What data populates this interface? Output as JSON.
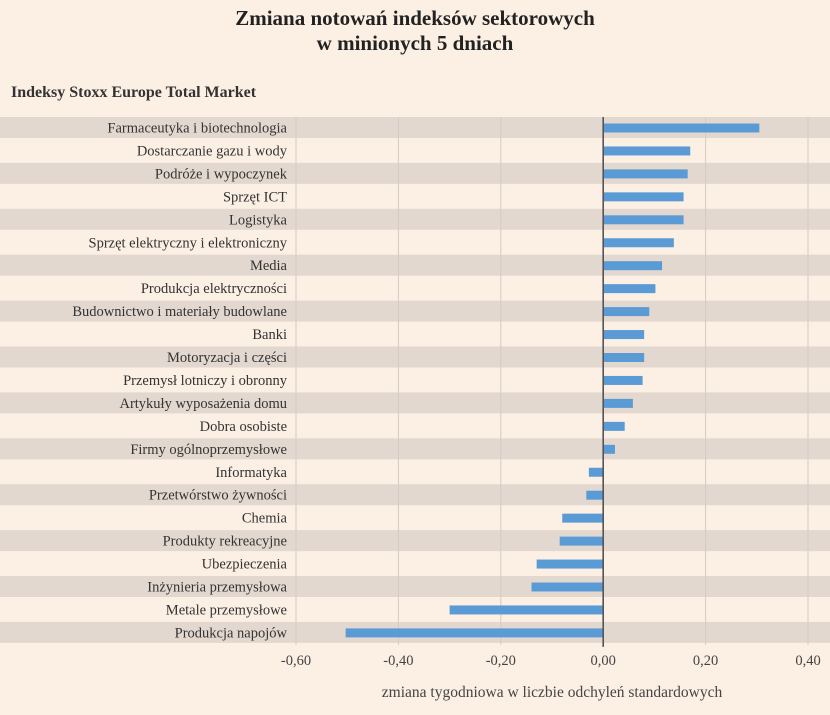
{
  "chart_data": {
    "type": "bar",
    "orientation": "horizontal",
    "title_lines": [
      "Zmiana notowań indeksów sektorowych",
      "w minionych 5 dniach"
    ],
    "subtitle": "Indeksy Stoxx Europe Total Market",
    "xlabel": "zmiana tygodniowa w liczbie odchyleń standardowych",
    "ylabel": "",
    "xlim": [
      -0.6,
      0.4
    ],
    "xticks": [
      -0.6,
      -0.4,
      -0.2,
      0.0,
      0.2,
      0.4
    ],
    "xtick_labels": [
      "-0,60",
      "-0,40",
      "-0,20",
      "0,00",
      "0,20",
      "0,40"
    ],
    "grid": true,
    "categories": [
      "Farmaceutyka i biotechnologia",
      "Dostarczanie gazu i wody",
      "Podróże i wypoczynek",
      "Sprzęt ICT",
      "Logistyka",
      "Sprzęt elektryczny i elektroniczny",
      "Media",
      "Produkcja elektryczności",
      "Budownictwo i materiały budowlane",
      "Banki",
      "Motoryzacja i części",
      "Przemysł lotniczy i obronny",
      "Artykuły wyposażenia domu",
      "Dobra osobiste",
      "Firmy ogólnoprzemysłowe",
      "Informatyka",
      "Przetwórstwo żywności",
      "Chemia",
      "Produkty rekreacyjne",
      "Ubezpieczenia",
      "Inżynieria przemysłowa",
      "Metale przemysłowe",
      "Produkcja napojów"
    ],
    "values": [
      0.305,
      0.17,
      0.165,
      0.157,
      0.157,
      0.138,
      0.115,
      0.102,
      0.09,
      0.08,
      0.08,
      0.077,
      0.058,
      0.042,
      0.023,
      -0.028,
      -0.033,
      -0.08,
      -0.085,
      -0.13,
      -0.14,
      -0.3,
      -0.503
    ],
    "colors": {
      "bar": "#5b9bd5",
      "zero_line": "#555555",
      "band": "#e3d8cf",
      "background": "#fcefe4",
      "grid": "#d3cbc4"
    }
  }
}
